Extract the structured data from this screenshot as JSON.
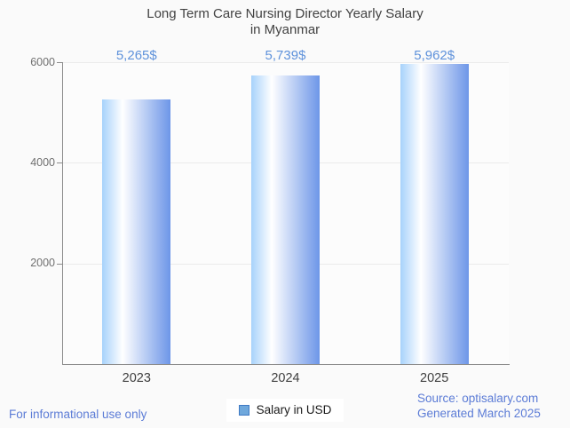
{
  "title": {
    "line1": "Long Term Care Nursing Director Yearly Salary",
    "line2": "in Myanmar"
  },
  "chart_data": {
    "type": "bar",
    "title": "Long Term Care Nursing Director Yearly Salary in Myanmar",
    "categories": [
      "2023",
      "2024",
      "2025"
    ],
    "values": [
      5265,
      5739,
      5962
    ],
    "value_labels": [
      "5,265$",
      "5,739$",
      "5,962$"
    ],
    "series_name": "Salary in USD",
    "xlabel": "",
    "ylabel": "",
    "ylim": [
      0,
      6000
    ],
    "yticks": [
      2000,
      4000,
      6000
    ],
    "grid": true,
    "legend_position": "bottom"
  },
  "legend": {
    "label": "Salary in USD"
  },
  "footer": {
    "disclaimer": "For informational use only",
    "source": "Source: optisalary.com",
    "generated": "Generated March 2025"
  },
  "colors": {
    "page_bg": "#FAFAFA",
    "title_text": "#424242",
    "bar_gradient_left": "#A7D2FB",
    "bar_gradient_mid": "#FFFFFF",
    "bar_gradient_right": "#6D96E8",
    "value_label": "#5F92DB",
    "footer_text": "#5C7CD6",
    "legend_swatch_fill": "#6FA8DC",
    "legend_swatch_border": "#3F7AC4",
    "axis_line": "#8C8C8C",
    "grid_line": "#EBEBEB",
    "ytick_text": "#707070",
    "xtick_text": "#3E3E3E"
  }
}
